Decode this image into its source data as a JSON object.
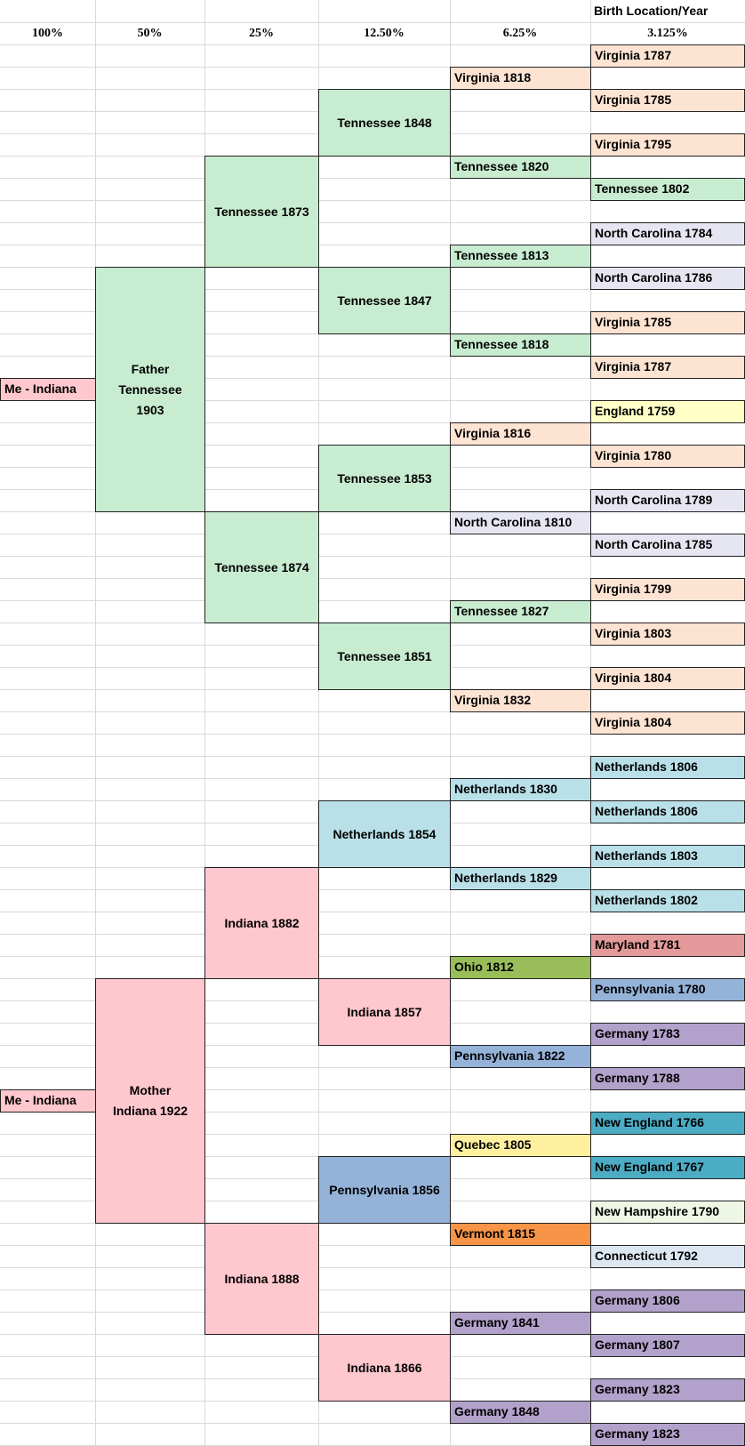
{
  "header": {
    "title": "Birth Location/Year",
    "columns": [
      "100%",
      "50%",
      "25%",
      "12.50%",
      "6.25%",
      "3.125%"
    ]
  },
  "self": [
    "Me - Indiana",
    "Me - Indiana"
  ],
  "parents": [
    [
      "Father",
      "Tennessee",
      "1903"
    ],
    [
      "Mother",
      "Indiana 1922"
    ]
  ],
  "grandparents": [
    "Tennessee 1873",
    "Tennessee 1874",
    "Indiana 1882",
    "Indiana 1888"
  ],
  "great_grandparents": [
    "Tennessee 1848",
    "Tennessee 1847",
    "Tennessee 1853",
    "Tennessee 1851",
    "Netherlands 1854",
    "Indiana 1857",
    "Pennsylvania 1856",
    "Indiana 1866"
  ],
  "gen5": [
    "Virginia 1818",
    "Tennessee 1820",
    "Tennessee 1813",
    "Tennessee 1818",
    "Virginia 1816",
    "North Carolina 1810",
    "Tennessee 1827",
    "Virginia 1832",
    "Netherlands 1830",
    "Netherlands 1829",
    "Ohio 1812",
    "Pennsylvania 1822",
    "Quebec 1805",
    "Vermont 1815",
    "Germany 1841",
    "Germany 1848"
  ],
  "gen6": [
    "Virginia 1787",
    "Virginia 1785",
    "Virginia 1795",
    "Tennessee 1802",
    "North Carolina 1784",
    "North Carolina 1786",
    "Virginia 1785",
    "Virginia 1787",
    "England 1759",
    "Virginia 1780",
    "North Carolina 1789",
    "North Carolina 1785",
    "Virginia 1799",
    "Virginia 1803",
    "Virginia 1804",
    "Virginia 1804",
    "Netherlands 1806",
    "Netherlands 1806",
    "Netherlands 1803",
    "Netherlands 1802",
    "Maryland 1781",
    "Pennsylvania 1780",
    "Germany 1783",
    "Germany 1788",
    "New England 1766",
    "New England 1767",
    "New Hampshire 1790",
    "Connecticut 1792",
    "Germany 1806",
    "Germany 1807",
    "Germany 1823",
    "Germany 1823"
  ],
  "colors": {
    "green": "#c8ecd0",
    "pink": "#ffc7ce",
    "peach": "#fde3d2",
    "lavender": "#e6e6f2",
    "yellow": "#ffffc6",
    "teal": "#b9e0e8",
    "rose": "#e49a9a",
    "olive": "#99bd59",
    "blue": "#95b3d9",
    "purple": "#b2a2cb",
    "cyan": "#4bacc4",
    "cream": "#eef6e6",
    "light_blue": "#dde7f2",
    "orange": "#f79448",
    "gold": "#fff0a0"
  }
}
